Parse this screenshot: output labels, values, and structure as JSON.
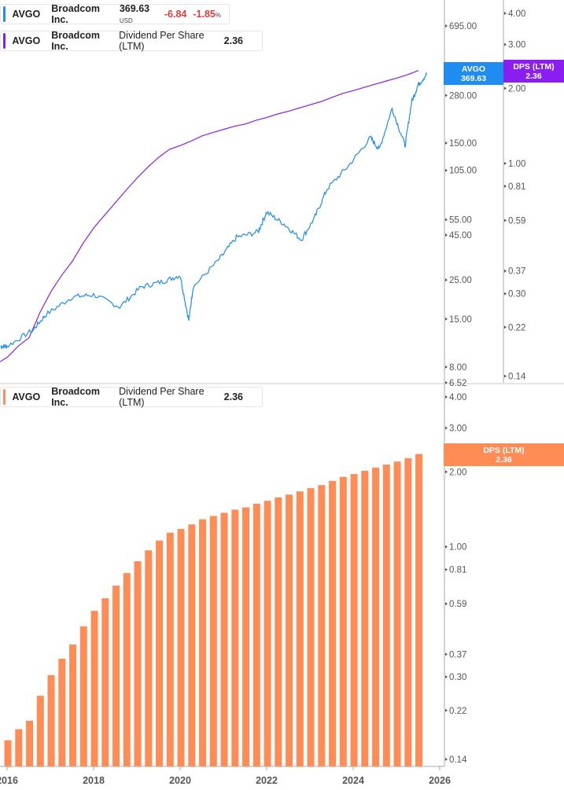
{
  "legend_price": {
    "ticker": "AVGO",
    "name": "Broadcom Inc.",
    "price": "369.63",
    "currency": "USD",
    "change": "-6.84",
    "change_pct": "-1.85",
    "pct_sign": "%",
    "color": "#1e8cf0"
  },
  "legend_dps_top": {
    "ticker": "AVGO",
    "name": "Broadcom Inc.",
    "metric": "Dividend Per Share (LTM)",
    "value": "2.36",
    "color": "#8a1ef0"
  },
  "legend_dps_bottom": {
    "ticker": "AVGO",
    "name": "Broadcom Inc.",
    "metric": "Dividend Per Share (LTM)",
    "value": "2.36",
    "color": "#ff8c55"
  },
  "tags": {
    "price": {
      "label": "AVGO",
      "value": "369.63"
    },
    "dps_top": {
      "label": "DPS (LTM)",
      "value": "2.36"
    },
    "dps_bottom": {
      "label": "DPS (LTM)",
      "value": "2.36"
    }
  },
  "chart_data": [
    {
      "type": "line",
      "scale": "log",
      "series": [
        {
          "name": "AVGO",
          "axis": "price",
          "color": "#1e8cf0",
          "x": [
            2015.85,
            2016.0,
            2016.6,
            2016.9,
            2017.5,
            2018.0,
            2018.6,
            2019.1,
            2019.6,
            2020.0,
            2020.2,
            2020.3,
            2020.9,
            2021.3,
            2021.8,
            2022.0,
            2022.4,
            2022.8,
            2023.1,
            2023.4,
            2023.9,
            2024.4,
            2024.6,
            2024.9,
            2025.2,
            2025.35,
            2025.5,
            2025.7
          ],
          "y": [
            10.5,
            10.5,
            13,
            15.9,
            20,
            20.6,
            17.6,
            22.8,
            24.5,
            26.6,
            14.7,
            22.8,
            32.7,
            43.6,
            46.9,
            60.7,
            52,
            42.4,
            55.9,
            82.6,
            112,
            161,
            138,
            236,
            145,
            256,
            321,
            369.63
          ]
        },
        {
          "name": "Dividend Per Share (LTM)",
          "axis": "dps",
          "color": "#8a1ef0"
        }
      ],
      "price_ticks": [
        "695.00",
        "280.00",
        "150.00",
        "105.00",
        "55.00",
        "45.00",
        "25.00",
        "15.00",
        "8.00",
        "6.52"
      ],
      "price_range": [
        6.52,
        1000
      ],
      "dps_ticks": [
        "4.00",
        "3.00",
        "2.00",
        "1.00",
        "0.81",
        "0.59",
        "0.37",
        "0.30",
        "0.22",
        "0.14"
      ],
      "dps_range": [
        0.125,
        4.3
      ]
    },
    {
      "type": "bar",
      "scale": "log",
      "name": "Dividend Per Share (LTM)",
      "color": "#ff8c55",
      "x": [
        "2016-Q1",
        "2016-Q2",
        "2016-Q3",
        "2016-Q4",
        "2017-Q1",
        "2017-Q2",
        "2017-Q3",
        "2017-Q4",
        "2018-Q1",
        "2018-Q2",
        "2018-Q3",
        "2018-Q4",
        "2019-Q1",
        "2019-Q2",
        "2019-Q3",
        "2019-Q4",
        "2020-Q1",
        "2020-Q2",
        "2020-Q3",
        "2020-Q4",
        "2021-Q1",
        "2021-Q2",
        "2021-Q3",
        "2021-Q4",
        "2022-Q1",
        "2022-Q2",
        "2022-Q3",
        "2022-Q4",
        "2023-Q1",
        "2023-Q2",
        "2023-Q3",
        "2023-Q4",
        "2024-Q1",
        "2024-Q2",
        "2024-Q3",
        "2024-Q4",
        "2025-Q1",
        "2025-Q2",
        "2025-Q3"
      ],
      "values": [
        0.167,
        0.185,
        0.2,
        0.252,
        0.305,
        0.355,
        0.405,
        0.479,
        0.553,
        0.621,
        0.698,
        0.784,
        0.875,
        0.968,
        1.06,
        1.14,
        1.18,
        1.23,
        1.29,
        1.33,
        1.37,
        1.41,
        1.44,
        1.49,
        1.53,
        1.58,
        1.62,
        1.67,
        1.72,
        1.77,
        1.84,
        1.91,
        1.96,
        2.02,
        2.08,
        2.14,
        2.2,
        2.27,
        2.36
      ],
      "y_ticks": [
        "4.00",
        "3.00",
        "2.00",
        "1.00",
        "0.81",
        "0.59",
        "0.37",
        "0.30",
        "0.22",
        "0.14"
      ],
      "x_ticks": [
        "2016",
        "2018",
        "2020",
        "2022",
        "2024",
        "2026"
      ]
    }
  ]
}
